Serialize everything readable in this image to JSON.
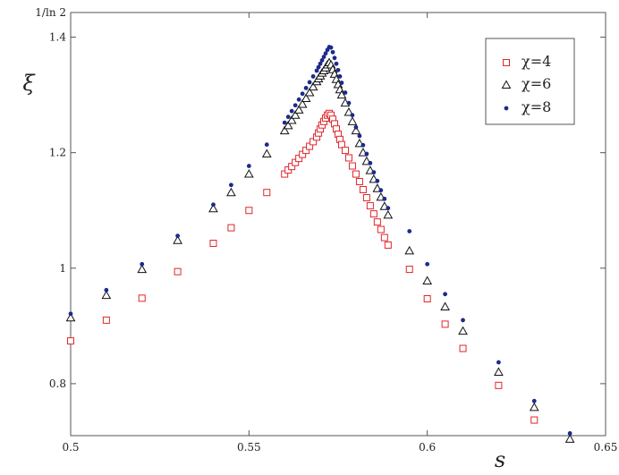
{
  "chart_data": {
    "type": "scatter",
    "xlabel": "s",
    "ylabel": "ξ",
    "xlim": [
      0.5,
      0.65
    ],
    "ylim": [
      0.71,
      1.442695
    ],
    "x_ticks": [
      0.5,
      0.55,
      0.6,
      0.65
    ],
    "x_tick_labels": [
      "0.5",
      "0.55",
      "0.6",
      "0.65"
    ],
    "y_ticks": [
      0.8,
      1.0,
      1.2,
      1.4,
      1.442695
    ],
    "y_tick_labels": [
      "0.8",
      "1",
      "1.2",
      "1.4",
      "1/ln 2"
    ],
    "grid": false,
    "legend_position": "top-right",
    "series": [
      {
        "name": "χ=4",
        "marker": "open-square",
        "color": "#e0262b",
        "points": [
          [
            0.5,
            0.874
          ],
          [
            0.51,
            0.91
          ],
          [
            0.52,
            0.948
          ],
          [
            0.53,
            0.994
          ],
          [
            0.54,
            1.043
          ],
          [
            0.545,
            1.07
          ],
          [
            0.55,
            1.1
          ],
          [
            0.555,
            1.131
          ],
          [
            0.56,
            1.163
          ],
          [
            0.561,
            1.17
          ],
          [
            0.562,
            1.176
          ],
          [
            0.563,
            1.183
          ],
          [
            0.564,
            1.19
          ],
          [
            0.565,
            1.197
          ],
          [
            0.566,
            1.204
          ],
          [
            0.567,
            1.211
          ],
          [
            0.568,
            1.219
          ],
          [
            0.569,
            1.227
          ],
          [
            0.5695,
            1.234
          ],
          [
            0.57,
            1.241
          ],
          [
            0.5705,
            1.248
          ],
          [
            0.571,
            1.254
          ],
          [
            0.5715,
            1.26
          ],
          [
            0.572,
            1.265
          ],
          [
            0.5725,
            1.268
          ],
          [
            0.573,
            1.265
          ],
          [
            0.5735,
            1.258
          ],
          [
            0.574,
            1.25
          ],
          [
            0.5745,
            1.241
          ],
          [
            0.575,
            1.232
          ],
          [
            0.5755,
            1.223
          ],
          [
            0.576,
            1.214
          ],
          [
            0.577,
            1.204
          ],
          [
            0.578,
            1.191
          ],
          [
            0.579,
            1.177
          ],
          [
            0.58,
            1.163
          ],
          [
            0.581,
            1.15
          ],
          [
            0.582,
            1.136
          ],
          [
            0.583,
            1.122
          ],
          [
            0.584,
            1.108
          ],
          [
            0.585,
            1.094
          ],
          [
            0.586,
            1.08
          ],
          [
            0.587,
            1.067
          ],
          [
            0.588,
            1.053
          ],
          [
            0.589,
            1.04
          ],
          [
            0.595,
            0.998
          ],
          [
            0.6,
            0.947
          ],
          [
            0.605,
            0.903
          ],
          [
            0.61,
            0.861
          ],
          [
            0.62,
            0.797
          ],
          [
            0.63,
            0.737
          ]
        ]
      },
      {
        "name": "χ=6",
        "marker": "open-triangle",
        "color": "#111111",
        "points": [
          [
            0.5,
            0.914
          ],
          [
            0.51,
            0.953
          ],
          [
            0.52,
            0.998
          ],
          [
            0.53,
            1.048
          ],
          [
            0.54,
            1.103
          ],
          [
            0.545,
            1.131
          ],
          [
            0.55,
            1.163
          ],
          [
            0.555,
            1.198
          ],
          [
            0.56,
            1.238
          ],
          [
            0.561,
            1.247
          ],
          [
            0.562,
            1.256
          ],
          [
            0.563,
            1.265
          ],
          [
            0.564,
            1.274
          ],
          [
            0.565,
            1.284
          ],
          [
            0.566,
            1.294
          ],
          [
            0.567,
            1.304
          ],
          [
            0.568,
            1.314
          ],
          [
            0.569,
            1.323
          ],
          [
            0.5695,
            1.328
          ],
          [
            0.57,
            1.333
          ],
          [
            0.5705,
            1.338
          ],
          [
            0.571,
            1.342
          ],
          [
            0.5715,
            1.347
          ],
          [
            0.572,
            1.352
          ],
          [
            0.5725,
            1.356
          ],
          [
            0.573,
            1.352
          ],
          [
            0.5735,
            1.344
          ],
          [
            0.574,
            1.336
          ],
          [
            0.5745,
            1.327
          ],
          [
            0.575,
            1.318
          ],
          [
            0.5755,
            1.309
          ],
          [
            0.576,
            1.3
          ],
          [
            0.577,
            1.286
          ],
          [
            0.578,
            1.27
          ],
          [
            0.579,
            1.254
          ],
          [
            0.58,
            1.238
          ],
          [
            0.581,
            1.216
          ],
          [
            0.582,
            1.2
          ],
          [
            0.583,
            1.185
          ],
          [
            0.584,
            1.169
          ],
          [
            0.585,
            1.154
          ],
          [
            0.586,
            1.138
          ],
          [
            0.587,
            1.123
          ],
          [
            0.588,
            1.107
          ],
          [
            0.589,
            1.092
          ],
          [
            0.595,
            1.03
          ],
          [
            0.6,
            0.978
          ],
          [
            0.605,
            0.933
          ],
          [
            0.61,
            0.891
          ],
          [
            0.62,
            0.82
          ],
          [
            0.63,
            0.759
          ],
          [
            0.64,
            0.704
          ]
        ]
      },
      {
        "name": "χ=8",
        "marker": "filled-dot",
        "color": "#1c2a8c",
        "points": [
          [
            0.5,
            0.921
          ],
          [
            0.51,
            0.962
          ],
          [
            0.52,
            1.007
          ],
          [
            0.53,
            1.056
          ],
          [
            0.54,
            1.11
          ],
          [
            0.545,
            1.144
          ],
          [
            0.55,
            1.177
          ],
          [
            0.555,
            1.214
          ],
          [
            0.56,
            1.252
          ],
          [
            0.561,
            1.262
          ],
          [
            0.562,
            1.272
          ],
          [
            0.563,
            1.282
          ],
          [
            0.564,
            1.292
          ],
          [
            0.565,
            1.302
          ],
          [
            0.566,
            1.312
          ],
          [
            0.567,
            1.322
          ],
          [
            0.568,
            1.332
          ],
          [
            0.569,
            1.342
          ],
          [
            0.5695,
            1.348
          ],
          [
            0.57,
            1.354
          ],
          [
            0.5705,
            1.36
          ],
          [
            0.571,
            1.366
          ],
          [
            0.5715,
            1.372
          ],
          [
            0.572,
            1.378
          ],
          [
            0.5725,
            1.383
          ],
          [
            0.573,
            1.382
          ],
          [
            0.5735,
            1.374
          ],
          [
            0.574,
            1.364
          ],
          [
            0.5745,
            1.354
          ],
          [
            0.575,
            1.343
          ],
          [
            0.5755,
            1.332
          ],
          [
            0.576,
            1.321
          ],
          [
            0.577,
            1.304
          ],
          [
            0.578,
            1.286
          ],
          [
            0.579,
            1.265
          ],
          [
            0.58,
            1.244
          ],
          [
            0.581,
            1.229
          ],
          [
            0.582,
            1.213
          ],
          [
            0.583,
            1.198
          ],
          [
            0.584,
            1.182
          ],
          [
            0.585,
            1.166
          ],
          [
            0.586,
            1.151
          ],
          [
            0.587,
            1.135
          ],
          [
            0.588,
            1.12
          ],
          [
            0.589,
            1.104
          ],
          [
            0.595,
            1.064
          ],
          [
            0.6,
            1.007
          ],
          [
            0.605,
            0.955
          ],
          [
            0.61,
            0.91
          ],
          [
            0.62,
            0.837
          ],
          [
            0.63,
            0.77
          ],
          [
            0.64,
            0.714
          ]
        ]
      }
    ]
  }
}
